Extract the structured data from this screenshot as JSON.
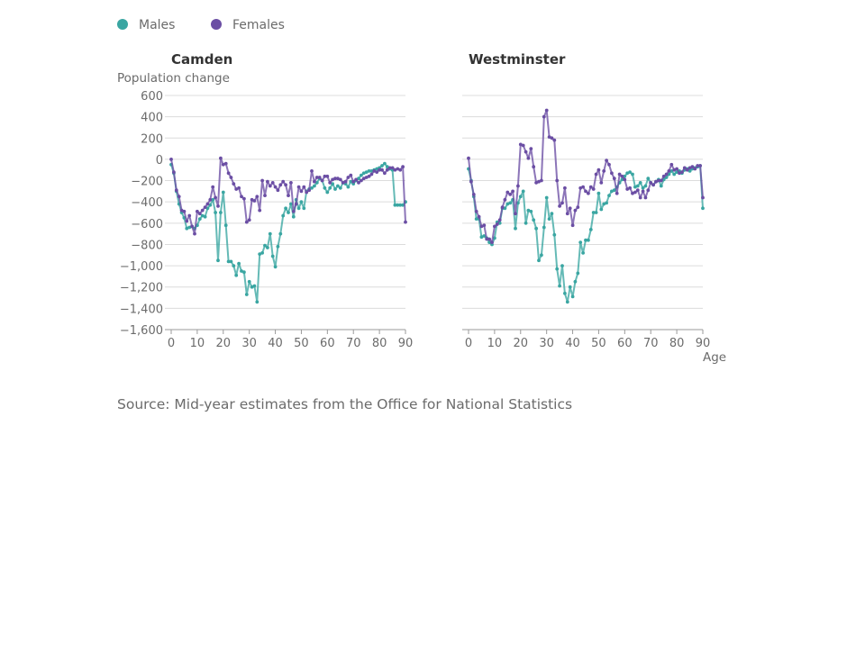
{
  "legend": {
    "males_label": "Males",
    "females_label": "Females",
    "males_color": "#3aa6a2",
    "females_color": "#6b4ea4"
  },
  "source": "Source: Mid-year estimates from the Office for National Statistics",
  "chart_data": [
    {
      "type": "line",
      "title": "Camden",
      "ylabel": "Population change",
      "xlabel": "",
      "ylim": [
        -1600,
        600
      ],
      "yticks": [
        600,
        400,
        200,
        0,
        -200,
        -400,
        -600,
        -800,
        -1000,
        -1200,
        -1400,
        -1600
      ],
      "ytick_labels": [
        "600",
        "400",
        "200",
        "0",
        "−200",
        "−400",
        "−600",
        "−800",
        "−1,000",
        "−1,200",
        "−1,400",
        "−1,600"
      ],
      "xlim": [
        0,
        90
      ],
      "xticks": [
        0,
        10,
        20,
        30,
        40,
        50,
        60,
        70,
        80,
        90
      ],
      "xtick_labels": [
        "0",
        "10",
        "20",
        "30",
        "40",
        "50",
        "60",
        "70",
        "80",
        "90"
      ],
      "grid": true,
      "series": [
        {
          "name": "Males",
          "color": "#3aa6a2",
          "x": [
            0,
            1,
            2,
            3,
            4,
            5,
            6,
            7,
            8,
            9,
            10,
            11,
            12,
            13,
            14,
            15,
            16,
            17,
            18,
            19,
            20,
            21,
            22,
            23,
            24,
            25,
            26,
            27,
            28,
            29,
            30,
            31,
            32,
            33,
            34,
            35,
            36,
            37,
            38,
            39,
            40,
            41,
            42,
            43,
            44,
            45,
            46,
            47,
            48,
            49,
            50,
            51,
            52,
            53,
            54,
            55,
            56,
            57,
            58,
            59,
            60,
            61,
            62,
            63,
            64,
            65,
            66,
            67,
            68,
            69,
            70,
            71,
            72,
            73,
            74,
            75,
            76,
            77,
            78,
            79,
            80,
            81,
            82,
            83,
            84,
            85,
            86,
            87,
            88,
            89,
            90
          ],
          "y": [
            -50,
            -130,
            -300,
            -420,
            -500,
            -550,
            -650,
            -640,
            -630,
            -650,
            -620,
            -560,
            -530,
            -540,
            -460,
            -430,
            -380,
            -500,
            -950,
            -500,
            -310,
            -620,
            -960,
            -960,
            -1000,
            -1090,
            -980,
            -1050,
            -1060,
            -1270,
            -1150,
            -1200,
            -1190,
            -1340,
            -890,
            -880,
            -810,
            -830,
            -700,
            -910,
            -1010,
            -820,
            -700,
            -530,
            -460,
            -500,
            -420,
            -540,
            -380,
            -460,
            -400,
            -460,
            -300,
            -280,
            -270,
            -250,
            -220,
            -180,
            -200,
            -270,
            -310,
            -270,
            -230,
            -280,
            -250,
            -270,
            -220,
            -230,
            -260,
            -210,
            -230,
            -200,
            -180,
            -150,
            -130,
            -120,
            -110,
            -110,
            -100,
            -90,
            -80,
            -60,
            -40,
            -70,
            -90,
            -100,
            -430,
            -430,
            -430,
            -430,
            -400
          ]
        },
        {
          "name": "Females",
          "color": "#6b4ea4",
          "x": [
            0,
            1,
            2,
            3,
            4,
            5,
            6,
            7,
            8,
            9,
            10,
            11,
            12,
            13,
            14,
            15,
            16,
            17,
            18,
            19,
            20,
            21,
            22,
            23,
            24,
            25,
            26,
            27,
            28,
            29,
            30,
            31,
            32,
            33,
            34,
            35,
            36,
            37,
            38,
            39,
            40,
            41,
            42,
            43,
            44,
            45,
            46,
            47,
            48,
            49,
            50,
            51,
            52,
            53,
            54,
            55,
            56,
            57,
            58,
            59,
            60,
            61,
            62,
            63,
            64,
            65,
            66,
            67,
            68,
            69,
            70,
            71,
            72,
            73,
            74,
            75,
            76,
            77,
            78,
            79,
            80,
            81,
            82,
            83,
            84,
            85,
            86,
            87,
            88,
            89,
            90
          ],
          "y": [
            0,
            -120,
            -290,
            -350,
            -480,
            -490,
            -580,
            -530,
            -630,
            -700,
            -490,
            -510,
            -480,
            -450,
            -420,
            -380,
            -260,
            -360,
            -440,
            10,
            -50,
            -40,
            -130,
            -170,
            -230,
            -280,
            -270,
            -350,
            -370,
            -590,
            -570,
            -380,
            -390,
            -350,
            -480,
            -200,
            -340,
            -210,
            -250,
            -220,
            -260,
            -290,
            -240,
            -210,
            -240,
            -340,
            -220,
            -490,
            -420,
            -260,
            -300,
            -260,
            -310,
            -290,
            -110,
            -210,
            -170,
            -170,
            -200,
            -160,
            -160,
            -220,
            -190,
            -180,
            -180,
            -190,
            -220,
            -210,
            -170,
            -150,
            -210,
            -190,
            -220,
            -200,
            -180,
            -170,
            -160,
            -140,
            -110,
            -120,
            -100,
            -100,
            -130,
            -100,
            -80,
            -80,
            -100,
            -90,
            -100,
            -70,
            -590
          ]
        }
      ]
    },
    {
      "type": "line",
      "title": "Westminster",
      "ylabel": "",
      "xlabel": "Age",
      "ylim": [
        -1600,
        600
      ],
      "xlim": [
        0,
        90
      ],
      "xticks": [
        0,
        10,
        20,
        30,
        40,
        50,
        60,
        70,
        80,
        90
      ],
      "xtick_labels": [
        "0",
        "10",
        "20",
        "30",
        "40",
        "50",
        "60",
        "70",
        "80",
        "90"
      ],
      "grid": true,
      "series": [
        {
          "name": "Males",
          "color": "#3aa6a2",
          "x": [
            0,
            1,
            2,
            3,
            4,
            5,
            6,
            7,
            8,
            9,
            10,
            11,
            12,
            13,
            14,
            15,
            16,
            17,
            18,
            19,
            20,
            21,
            22,
            23,
            24,
            25,
            26,
            27,
            28,
            29,
            30,
            31,
            32,
            33,
            34,
            35,
            36,
            37,
            38,
            39,
            40,
            41,
            42,
            43,
            44,
            45,
            46,
            47,
            48,
            49,
            50,
            51,
            52,
            53,
            54,
            55,
            56,
            57,
            58,
            59,
            60,
            61,
            62,
            63,
            64,
            65,
            66,
            67,
            68,
            69,
            70,
            71,
            72,
            73,
            74,
            75,
            76,
            77,
            78,
            79,
            80,
            81,
            82,
            83,
            84,
            85,
            86,
            87,
            88,
            89,
            90
          ],
          "y": [
            -90,
            -200,
            -350,
            -560,
            -560,
            -730,
            -720,
            -740,
            -780,
            -800,
            -740,
            -590,
            -600,
            -460,
            -460,
            -420,
            -410,
            -380,
            -650,
            -410,
            -350,
            -300,
            -600,
            -480,
            -490,
            -570,
            -650,
            -950,
            -900,
            -640,
            -360,
            -560,
            -510,
            -710,
            -1030,
            -1190,
            -1000,
            -1260,
            -1340,
            -1200,
            -1290,
            -1150,
            -1070,
            -780,
            -880,
            -760,
            -760,
            -660,
            -500,
            -500,
            -320,
            -470,
            -420,
            -410,
            -340,
            -300,
            -290,
            -260,
            -220,
            -190,
            -160,
            -130,
            -120,
            -140,
            -260,
            -250,
            -220,
            -270,
            -250,
            -180,
            -220,
            -240,
            -210,
            -190,
            -250,
            -190,
            -170,
            -140,
            -110,
            -140,
            -120,
            -110,
            -130,
            -100,
            -90,
            -110,
            -90,
            -80,
            -70,
            -60,
            -460
          ]
        },
        {
          "name": "Females",
          "color": "#6b4ea4",
          "x": [
            0,
            1,
            2,
            3,
            4,
            5,
            6,
            7,
            8,
            9,
            10,
            11,
            12,
            13,
            14,
            15,
            16,
            17,
            18,
            19,
            20,
            21,
            22,
            23,
            24,
            25,
            26,
            27,
            28,
            29,
            30,
            31,
            32,
            33,
            34,
            35,
            36,
            37,
            38,
            39,
            40,
            41,
            42,
            43,
            44,
            45,
            46,
            47,
            48,
            49,
            50,
            51,
            52,
            53,
            54,
            55,
            56,
            57,
            58,
            59,
            60,
            61,
            62,
            63,
            64,
            65,
            66,
            67,
            68,
            69,
            70,
            71,
            72,
            73,
            74,
            75,
            76,
            77,
            78,
            79,
            80,
            81,
            82,
            83,
            84,
            85,
            86,
            87,
            88,
            89,
            90
          ],
          "y": [
            10,
            -210,
            -330,
            -490,
            -540,
            -630,
            -620,
            -750,
            -750,
            -780,
            -630,
            -610,
            -570,
            -450,
            -380,
            -310,
            -330,
            -300,
            -510,
            -250,
            140,
            130,
            70,
            10,
            100,
            -70,
            -220,
            -210,
            -200,
            400,
            460,
            210,
            200,
            180,
            -200,
            -440,
            -410,
            -270,
            -510,
            -460,
            -620,
            -480,
            -450,
            -270,
            -260,
            -300,
            -320,
            -260,
            -280,
            -140,
            -100,
            -220,
            -110,
            -10,
            -50,
            -130,
            -180,
            -320,
            -140,
            -160,
            -190,
            -280,
            -270,
            -320,
            -310,
            -290,
            -360,
            -300,
            -360,
            -290,
            -220,
            -240,
            -210,
            -200,
            -200,
            -160,
            -140,
            -110,
            -50,
            -100,
            -90,
            -130,
            -120,
            -80,
            -100,
            -80,
            -70,
            -90,
            -60,
            -60,
            -360
          ]
        }
      ]
    }
  ]
}
